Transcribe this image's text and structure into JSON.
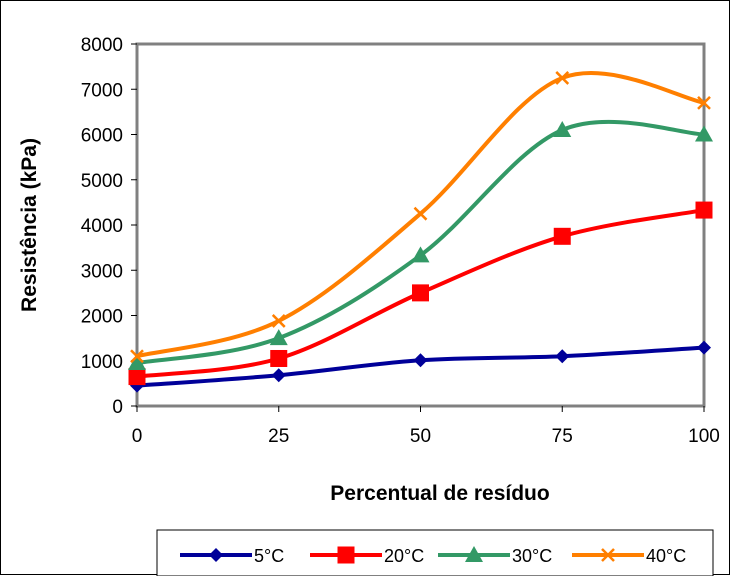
{
  "chart_data": {
    "type": "line",
    "xlabel": "Percentual de resíduo",
    "ylabel": "Resistência (kPa)",
    "xlim": [
      0,
      100
    ],
    "ylim": [
      0,
      8000
    ],
    "x_ticks": [
      "0",
      "25",
      "50",
      "75",
      "100"
    ],
    "y_ticks": [
      "0",
      "1000",
      "2000",
      "3000",
      "4000",
      "5000",
      "6000",
      "7000",
      "8000"
    ],
    "x": [
      0,
      25,
      50,
      75,
      100
    ],
    "series": [
      {
        "name": "5°C",
        "values": [
          450,
          680,
          1010,
          1100,
          1290
        ],
        "color": "#000099",
        "marker": "diamond"
      },
      {
        "name": "20°C",
        "values": [
          650,
          1050,
          2500,
          3750,
          4330
        ],
        "color": "#ff0000",
        "marker": "square"
      },
      {
        "name": "30°C",
        "values": [
          950,
          1500,
          3330,
          6100,
          6000
        ],
        "color": "#339966",
        "marker": "triangle"
      },
      {
        "name": "40°C",
        "values": [
          1100,
          1880,
          4250,
          7250,
          6700
        ],
        "color": "#ff7f00",
        "marker": "cross"
      }
    ],
    "grid": false,
    "smooth": true,
    "legend_position": "bottom"
  }
}
